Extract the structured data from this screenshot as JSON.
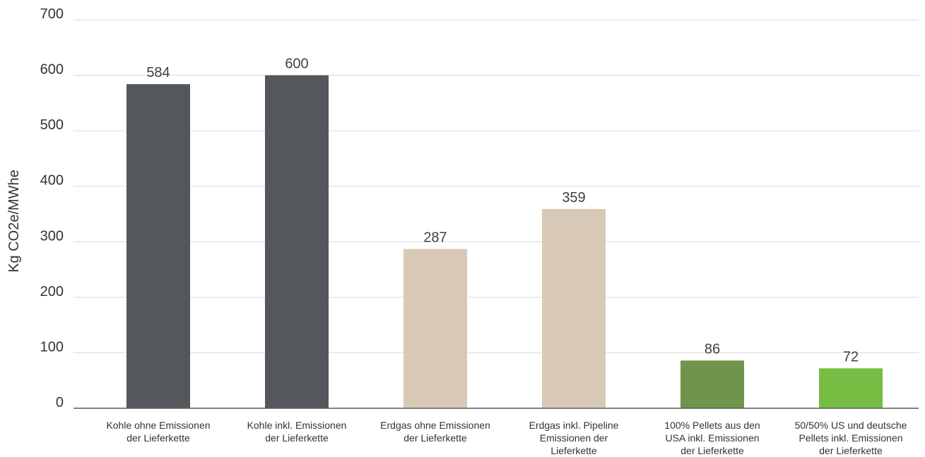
{
  "chart_data": {
    "type": "bar",
    "title": "",
    "xlabel": "",
    "ylabel": "Kg CO2e/MWhe",
    "ylim": [
      0,
      700
    ],
    "yticks": [
      0,
      100,
      200,
      300,
      400,
      500,
      600,
      700
    ],
    "grid": true,
    "categories": [
      [
        "Kohle ohne Emissionen",
        "der Lieferkette"
      ],
      [
        "Kohle inkl. Emissionen",
        "der Lieferkette"
      ],
      [
        "Erdgas ohne Emissionen",
        "der Lieferkette"
      ],
      [
        "Erdgas inkl. Pipeline",
        "Emissionen der",
        "Lieferkette"
      ],
      [
        "100% Pellets aus den",
        "USA inkl. Emissionen",
        "der Lieferkette"
      ],
      [
        "50/50% US und deutsche",
        "Pellets inkl. Emissionen",
        "der Lieferkette"
      ]
    ],
    "values": [
      584,
      600,
      287,
      359,
      86,
      72
    ],
    "data_labels": [
      "584",
      "600",
      "287",
      "359",
      "86",
      "72"
    ],
    "colors": [
      "#54575b",
      "#54575b",
      "#d8c9b7",
      "#d8c9b7",
      "#6f944b",
      "#76bd43"
    ]
  }
}
